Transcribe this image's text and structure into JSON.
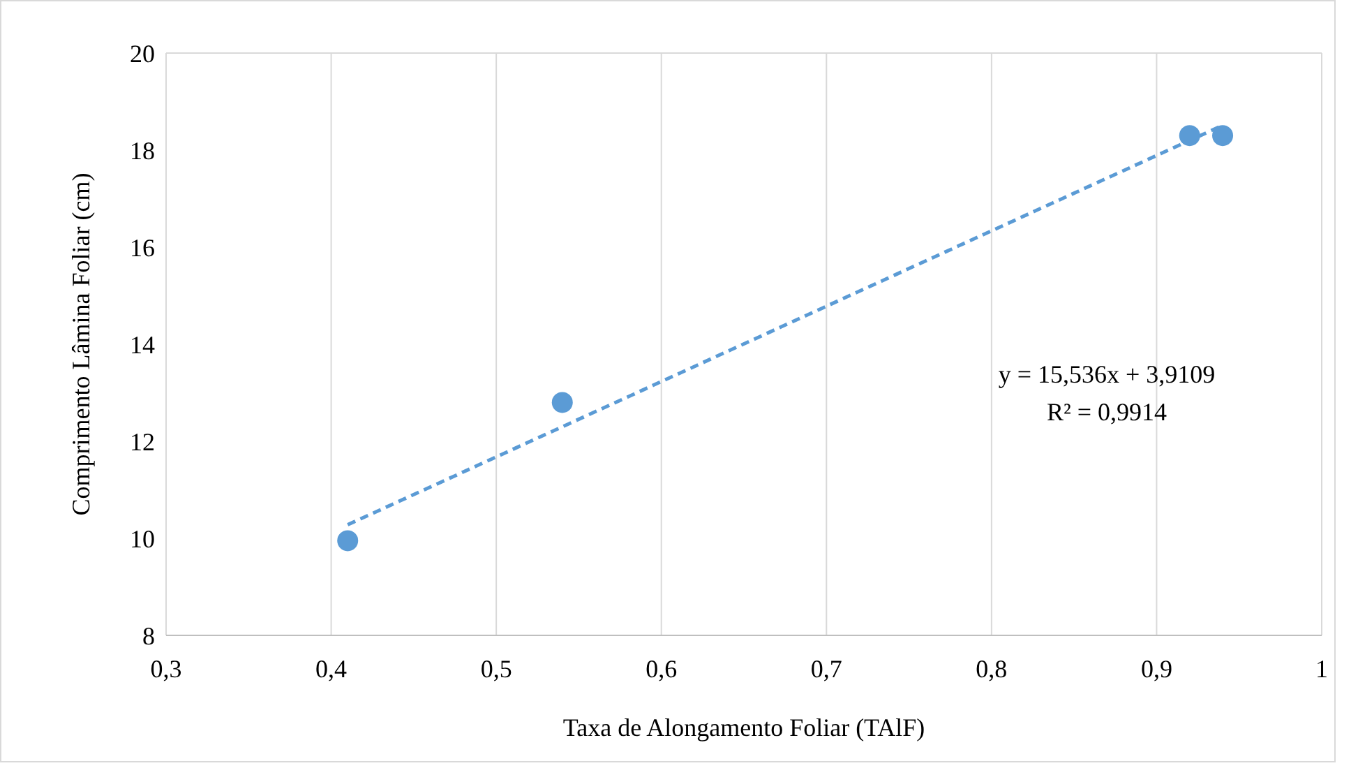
{
  "chart_data": {
    "type": "scatter",
    "xlabel": "Taxa de Alongamento Foliar (TAlF)",
    "ylabel": "Comprimento Lâmina Foliar (cm)",
    "xlim": [
      0.3,
      1
    ],
    "xticks": [
      {
        "value": 0.3,
        "label": "0,3"
      },
      {
        "value": 0.4,
        "label": "0,4"
      },
      {
        "value": 0.5,
        "label": "0,5"
      },
      {
        "value": 0.6,
        "label": "0,6"
      },
      {
        "value": 0.7,
        "label": "0,7"
      },
      {
        "value": 0.8,
        "label": "0,8"
      },
      {
        "value": 0.9,
        "label": "0,9"
      },
      1
    ],
    "ylim": [
      8,
      20
    ],
    "yticks": [
      8,
      10,
      12,
      14,
      16,
      18,
      20
    ],
    "grid": "x",
    "series": [
      {
        "color": "#5b9bd5",
        "marker": "circle",
        "x": [
          0.41,
          0.54,
          0.92,
          0.94
        ],
        "values": [
          9.95,
          12.8,
          18.3,
          18.3
        ]
      },
      {
        "type": "line",
        "color": "#5b9bd5",
        "line_style": "dashed",
        "x": [
          0.41,
          0.94
        ],
        "values": [
          10.28,
          18.51
        ]
      }
    ],
    "annotations": [
      "y = 15,536x + 3,9109",
      "R² = 0,9914"
    ]
  }
}
